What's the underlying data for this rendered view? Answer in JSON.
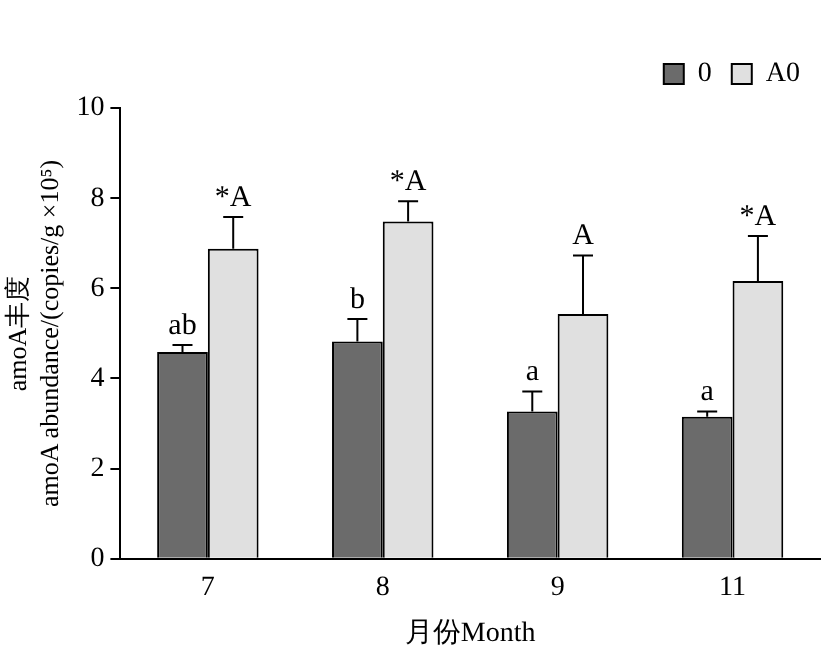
{
  "chart_data": {
    "type": "bar",
    "xlabel": "月份Month",
    "ylabel": "amoA丰度\namoA abundance/(copies/g ×10⁵)",
    "categories": [
      "7",
      "8",
      "9",
      "11"
    ],
    "series": [
      {
        "name": "0",
        "color": "#6b6b6b",
        "values": [
          4.59,
          4.82,
          3.27,
          3.15
        ],
        "errors": [
          0.15,
          0.5,
          0.44,
          0.12
        ]
      },
      {
        "name": "A0",
        "color": "#e0e0e0",
        "values": [
          6.88,
          7.48,
          5.43,
          6.16
        ],
        "errors": [
          0.7,
          0.45,
          1.3,
          1.0
        ]
      }
    ],
    "ylim": [
      0,
      10
    ],
    "yticks": [
      0,
      2,
      4,
      6,
      8,
      10
    ],
    "grid": false,
    "legend": "top right",
    "annotations": [
      {
        "text": "ab",
        "x": "7",
        "y": 4.59
      },
      {
        "text": "*A",
        "x": "7",
        "y": 6.88
      },
      {
        "text": "b",
        "x": "8",
        "y": 4.82
      },
      {
        "text": "*A",
        "x": "8",
        "y": 7.48
      },
      {
        "text": "a",
        "x": "9",
        "y": 3.27
      },
      {
        "text": "A",
        "x": "9",
        "y": 5.43
      },
      {
        "text": "a",
        "x": "11",
        "y": 3.15
      },
      {
        "text": "*A",
        "x": "11",
        "y": 6.16
      }
    ]
  }
}
